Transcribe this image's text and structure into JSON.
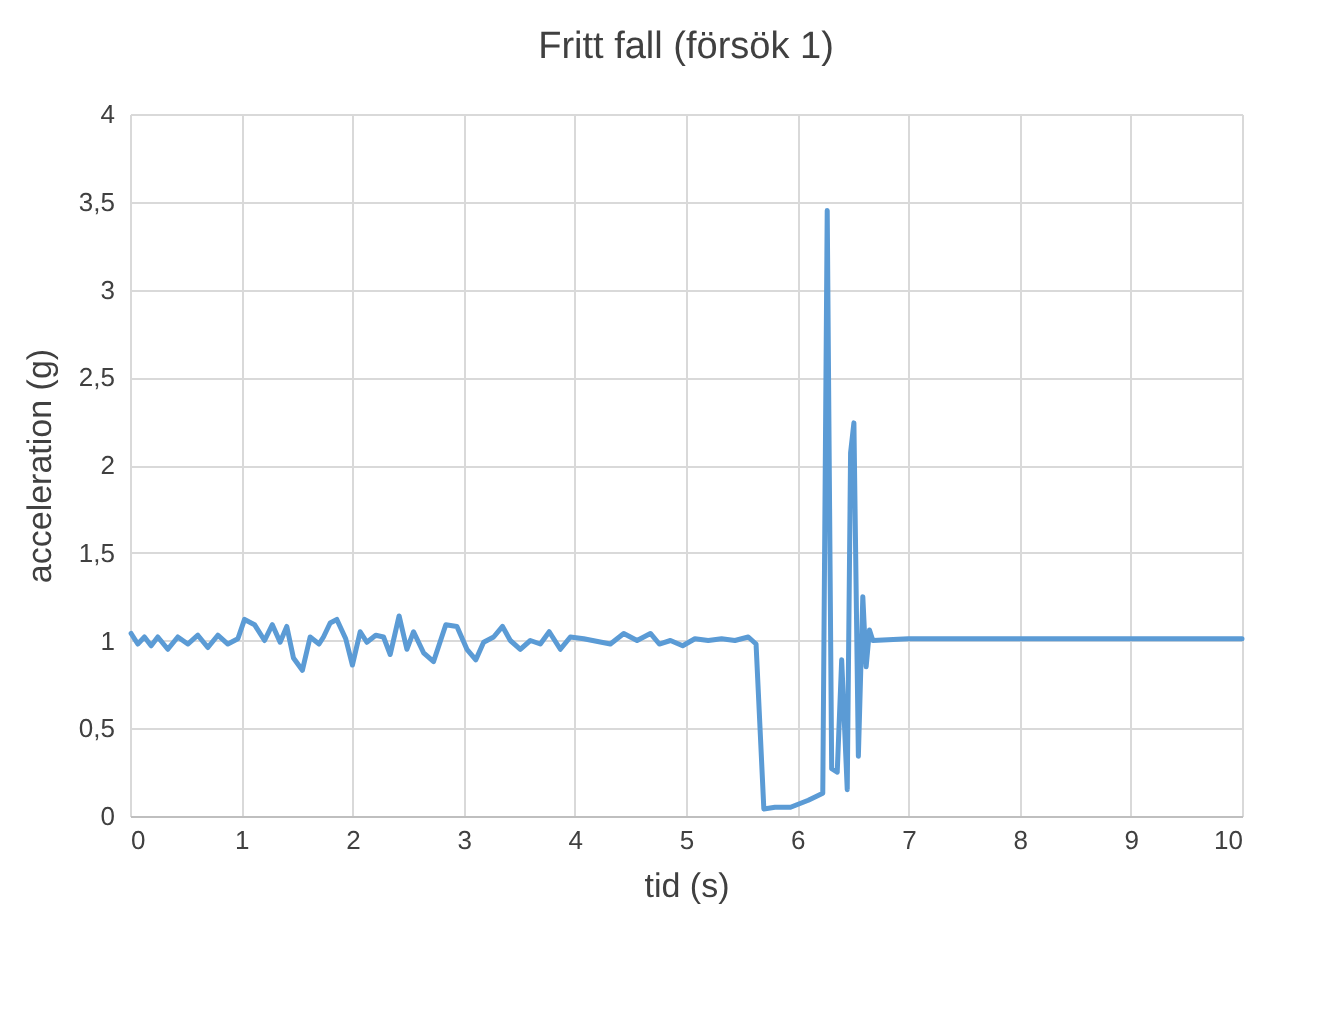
{
  "chart_data": {
    "type": "line",
    "title": "Fritt fall (försök 1)",
    "xlabel": "tid (s)",
    "ylabel": "acceleration (g)",
    "xlim": [
      0,
      10
    ],
    "xticks": [
      0,
      1,
      2,
      3,
      4,
      5,
      6,
      7,
      8,
      9,
      10
    ],
    "ylim": [
      0,
      4
    ],
    "yticks": [
      0,
      {
        "value": 0.5,
        "label": "0,5"
      },
      1,
      {
        "value": 1.5,
        "label": "1,5"
      },
      2,
      {
        "value": 2.5,
        "label": "2,5"
      },
      3,
      {
        "value": 3.5,
        "label": "3,5"
      },
      4
    ],
    "grid": true,
    "marker": "none",
    "line_style": "solid",
    "series": [
      {
        "color": "#5b9bd5",
        "x": [
          0.01,
          0.07,
          0.13,
          0.19,
          0.25,
          0.34,
          0.43,
          0.52,
          0.61,
          0.7,
          0.79,
          0.88,
          0.97,
          1.03,
          1.12,
          1.21,
          1.28,
          1.35,
          1.41,
          1.47,
          1.55,
          1.62,
          1.7,
          1.74,
          1.8,
          1.86,
          1.94,
          2.0,
          2.07,
          2.13,
          2.21,
          2.28,
          2.34,
          2.42,
          2.49,
          2.55,
          2.64,
          2.73,
          2.84,
          2.94,
          3.03,
          3.11,
          3.18,
          3.27,
          3.35,
          3.42,
          3.51,
          3.6,
          3.69,
          3.77,
          3.87,
          3.96,
          4.08,
          4.32,
          4.44,
          4.56,
          4.68,
          4.76,
          4.86,
          4.97,
          5.08,
          5.2,
          5.32,
          5.44,
          5.56,
          5.63,
          5.7,
          5.8,
          5.94,
          6.1,
          6.23,
          6.27,
          6.31,
          6.36,
          6.4,
          6.45,
          6.48,
          6.51,
          6.55,
          6.59,
          6.62,
          6.65,
          6.68,
          7,
          8,
          9,
          10
        ],
        "values": [
          1.04,
          0.98,
          1.02,
          0.97,
          1.02,
          0.95,
          1.02,
          0.98,
          1.03,
          0.96,
          1.03,
          0.98,
          1.01,
          1.12,
          1.09,
          1.0,
          1.09,
          0.99,
          1.08,
          0.9,
          0.83,
          1.02,
          0.98,
          1.02,
          1.1,
          1.12,
          1.01,
          0.86,
          1.05,
          0.99,
          1.03,
          1.02,
          0.92,
          1.14,
          0.95,
          1.05,
          0.93,
          0.88,
          1.09,
          1.08,
          0.95,
          0.89,
          0.99,
          1.02,
          1.08,
          1.0,
          0.95,
          1.0,
          0.98,
          1.05,
          0.95,
          1.02,
          1.01,
          0.98,
          1.04,
          1.0,
          1.04,
          0.98,
          1.0,
          0.97,
          1.01,
          1.0,
          1.01,
          1.0,
          1.02,
          0.98,
          0.04,
          0.05,
          0.05,
          0.09,
          0.13,
          3.45,
          0.27,
          0.25,
          0.89,
          0.15,
          2.07,
          2.24,
          0.34,
          1.25,
          0.85,
          1.06,
          1.0,
          1.01,
          1.01,
          1.01,
          1.01
        ]
      }
    ]
  }
}
